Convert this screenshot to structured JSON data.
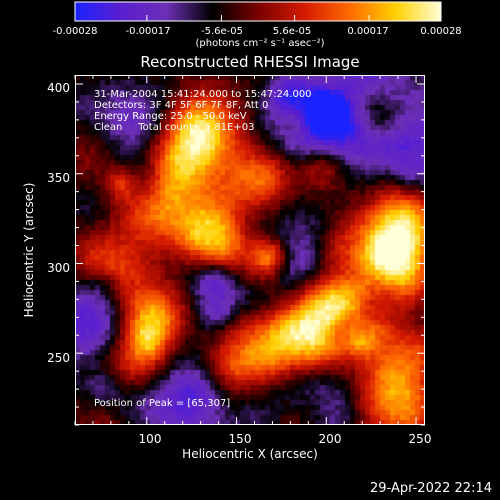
{
  "colorbar": {
    "ticks": [
      "-0.00028",
      "-0.00017",
      "-5.6e-05",
      "5.6e-05",
      "0.00017",
      "0.00028"
    ],
    "tick_values": [
      -0.00028,
      -0.00017,
      -5.6e-05,
      5.6e-05,
      0.00017,
      0.00028
    ],
    "unit_label": "(photons cm⁻² s⁻¹ asec⁻²)",
    "colors": [
      "#1a22ff",
      "#5a1fcf",
      "#6c2fb6",
      "#000000",
      "#7a0000",
      "#d41a00",
      "#ff6a00",
      "#ffd000",
      "#ffffd8"
    ]
  },
  "plot": {
    "annotation_lines": [
      "31-Mar-2004 15:41:24.000 to 15:47:24.000",
      "Detectors: 3F 4F 5F 6F 7F 8F, Att 0",
      "Energy Range: 25.0 - 50.0 keV",
      "Clean     Total counts: 5.81E+03"
    ],
    "peak_text": "Position of Peak = [65,307]"
  },
  "chart_data": {
    "type": "heatmap",
    "title": "Reconstructed RHESSI Image",
    "xlabel": "Heliocentric X (arcsec)",
    "ylabel": "Heliocentric Y (arcsec)",
    "xlim": [
      60,
      255
    ],
    "ylim": [
      210,
      405
    ],
    "xticks": [
      100,
      150,
      200,
      250
    ],
    "yticks": [
      250,
      300,
      350,
      400
    ],
    "xtick_labels": [
      "100",
      "150",
      "200",
      "250"
    ],
    "ytick_labels": [
      "250",
      "300",
      "350",
      "400"
    ],
    "zlim": [
      -0.00028,
      0.00028
    ],
    "peak_position": [
      65,
      307
    ],
    "bright_sources": [
      {
        "x": 130,
        "y": 375,
        "level": 1.0
      },
      {
        "x": 138,
        "y": 320,
        "level": 0.9
      },
      {
        "x": 80,
        "y": 300,
        "level": 1.0
      },
      {
        "x": 105,
        "y": 330,
        "level": 0.6
      },
      {
        "x": 118,
        "y": 355,
        "level": 0.7
      },
      {
        "x": 160,
        "y": 345,
        "level": 0.6
      },
      {
        "x": 235,
        "y": 310,
        "level": 1.0
      },
      {
        "x": 215,
        "y": 280,
        "level": 0.8
      },
      {
        "x": 245,
        "y": 330,
        "level": 0.6
      },
      {
        "x": 185,
        "y": 265,
        "level": 0.7
      },
      {
        "x": 165,
        "y": 250,
        "level": 0.7
      },
      {
        "x": 200,
        "y": 255,
        "level": 0.6
      },
      {
        "x": 110,
        "y": 270,
        "level": 0.55
      },
      {
        "x": 95,
        "y": 245,
        "level": 0.6
      },
      {
        "x": 150,
        "y": 230,
        "level": 0.55
      },
      {
        "x": 235,
        "y": 225,
        "level": 0.7
      },
      {
        "x": 240,
        "y": 245,
        "level": 0.5
      }
    ],
    "dim_regions": [
      {
        "x": 195,
        "y": 375,
        "level": -0.8
      },
      {
        "x": 230,
        "y": 385,
        "level": -0.7
      },
      {
        "x": 250,
        "y": 360,
        "level": -0.6
      },
      {
        "x": 95,
        "y": 380,
        "level": -0.5
      },
      {
        "x": 70,
        "y": 270,
        "level": -0.7
      },
      {
        "x": 120,
        "y": 225,
        "level": -0.6
      },
      {
        "x": 190,
        "y": 225,
        "level": -0.5
      },
      {
        "x": 140,
        "y": 280,
        "level": -0.5
      },
      {
        "x": 175,
        "y": 310,
        "level": -0.4
      }
    ]
  },
  "footer": {
    "timestamp": "29-Apr-2022 22:14"
  }
}
